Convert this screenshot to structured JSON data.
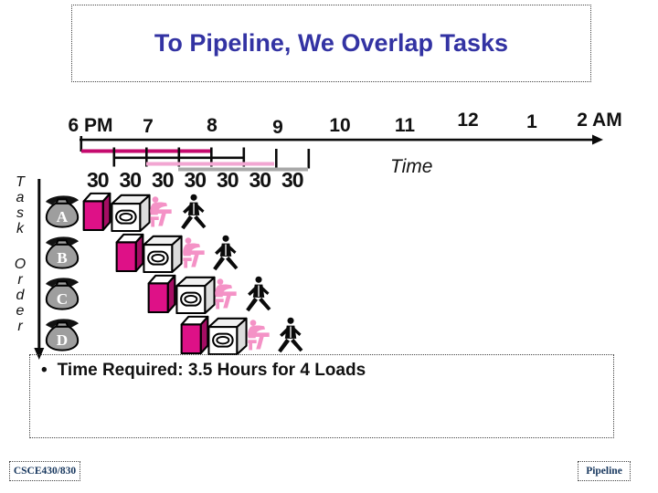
{
  "slide": {
    "title": "To Pipeline, We Overlap Tasks",
    "bullet": {
      "marker": "•",
      "text": "Time Required: 3.5 Hours for 4 Loads"
    },
    "footer_left": "CSCE430/830",
    "footer_right": "Pipeline"
  },
  "timeline": {
    "hours": [
      "6 PM",
      "7",
      "8",
      "9",
      "10",
      "11",
      "12",
      "1",
      "2 AM"
    ],
    "interval_minutes": [
      "30",
      "30",
      "30",
      "30",
      "30",
      "30",
      "30"
    ],
    "axis_label": "Time"
  },
  "task_axis": {
    "label_top": "Task",
    "label_bottom": "Order"
  },
  "pipeline": {
    "stage_icons": [
      "laundry-basket-icon",
      "washer-icon",
      "dryer-icon",
      "folder-icon",
      "walker-icon"
    ],
    "rows": [
      {
        "label": "A"
      },
      {
        "label": "B"
      },
      {
        "label": "C"
      },
      {
        "label": "D"
      }
    ]
  },
  "colors": {
    "title": "#3333A3",
    "washer_magenta": "#DE1187",
    "washer_side": "#A40D63",
    "bar_magenta": "#C50A6E",
    "bar_pink": "#F2A6D2",
    "bar_gray": "#A8A8A8",
    "figure_pink": "#F492C6",
    "footer_navy": "#17375E"
  }
}
